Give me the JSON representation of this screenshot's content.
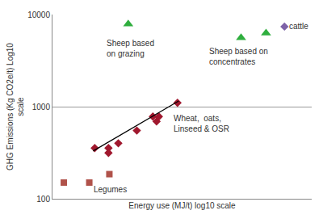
{
  "chart_data": {
    "type": "scatter",
    "x_label": "Energy use (MJ/t) log10 scale",
    "y_label": [
      "GHG Emissions (Kg CO2e/t) Log10",
      "scale"
    ],
    "log": true,
    "grid": true,
    "tick_labels": "y",
    "xlim": [
      1000,
      20000
    ],
    "ylim": [
      100,
      10000
    ],
    "yticks": [
      100,
      1000,
      10000
    ],
    "series": [
      {
        "color": "#b0524a",
        "marker": "square",
        "x": [
          1140,
          1530,
          1930
        ],
        "values": [
          150,
          150,
          185
        ]
      },
      {
        "color": "#a0182e",
        "marker": "diamond",
        "x": [
          1630,
          1910,
          1910,
          2140,
          2650,
          3190,
          3330,
          3420,
          4240
        ],
        "values": [
          355,
          355,
          315,
          400,
          550,
          780,
          690,
          780,
          1100
        ]
      },
      {
        "color": "#000000",
        "type": "line",
        "line_style": "solid",
        "x": [
          1600,
          4300
        ],
        "values": [
          330,
          1150
        ]
      },
      {
        "color": "#2fae3e",
        "marker": "triangle-up",
        "x": [
          2400,
          8840,
          11800
        ],
        "values": [
          7900,
          5600,
          6300
        ]
      },
      {
        "color": "#7e62a8",
        "marker": "diamond",
        "x": [
          14600
        ],
        "values": [
          7400
        ]
      }
    ],
    "annotations": [
      {
        "text": [
          "Sheep based",
          "on grazing"
        ],
        "x": 2450,
        "y": 4300
      },
      {
        "text": [
          "Sheep based on",
          "concentrates"
        ],
        "x": 8600,
        "y": 3500
      },
      {
        "text": [
          "cattle"
        ],
        "x": 17300,
        "y": 7400
      },
      {
        "text": [
          "Wheat,  oats,",
          "Linseed & OSR"
        ],
        "x": 5600,
        "y": 650
      },
      {
        "text": [
          "Legumes"
        ],
        "x": 1950,
        "y": 125
      }
    ]
  }
}
